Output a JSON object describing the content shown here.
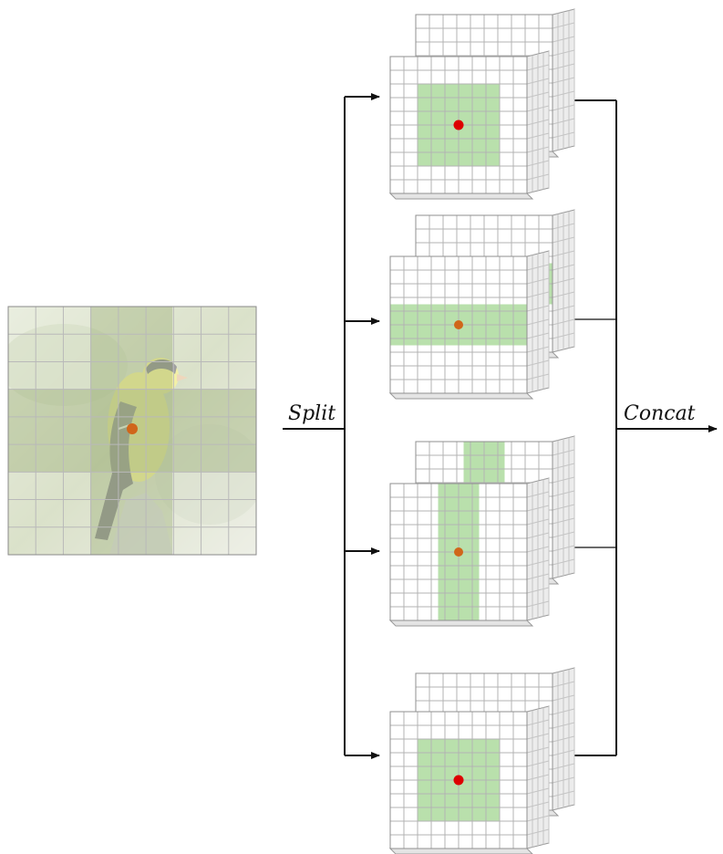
{
  "labels": {
    "split": "Split",
    "concat": "Concat"
  },
  "colors": {
    "highlight": "#b9e0ac",
    "center_red": "#dd0000",
    "center_orange": "#d0661a",
    "bird_yellow": "#e4de3c",
    "bird_dark": "#2a2a2a",
    "arrow": "#111111"
  },
  "input_image": {
    "subject": "bird-photo",
    "grid_rows": 9,
    "grid_cols": 9
  },
  "branches": [
    {
      "id": "branch-1",
      "pattern": "square-window",
      "center_color": "red"
    },
    {
      "id": "branch-2",
      "pattern": "horizontal-stripe",
      "center_color": "orange"
    },
    {
      "id": "branch-3",
      "pattern": "vertical-stripe",
      "center_color": "orange"
    },
    {
      "id": "branch-4",
      "pattern": "square-window",
      "center_color": "red"
    }
  ]
}
